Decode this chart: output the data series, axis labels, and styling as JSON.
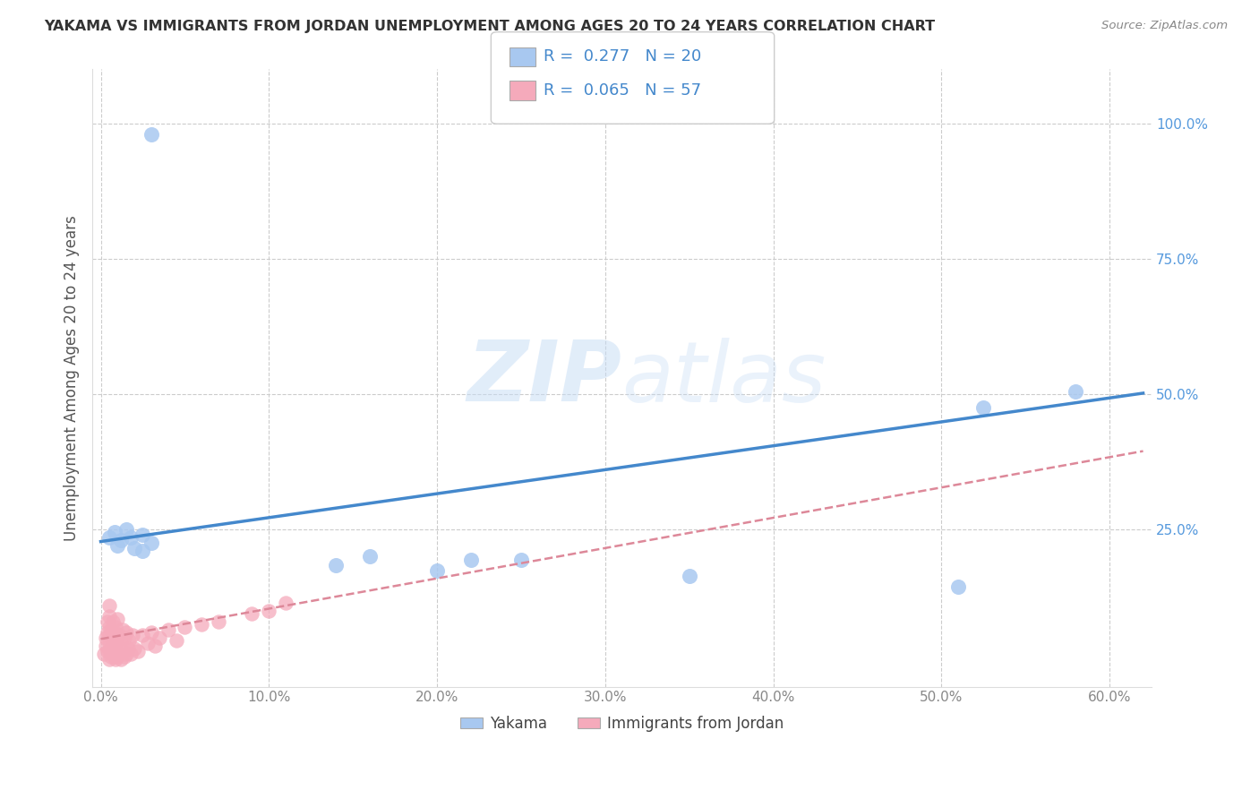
{
  "title": "YAKAMA VS IMMIGRANTS FROM JORDAN UNEMPLOYMENT AMONG AGES 20 TO 24 YEARS CORRELATION CHART",
  "source": "Source: ZipAtlas.com",
  "ylabel_label": "Unemployment Among Ages 20 to 24 years",
  "xlim": [
    -0.005,
    0.625
  ],
  "ylim": [
    -0.04,
    1.1
  ],
  "watermark_zip": "ZIP",
  "watermark_atlas": "atlas",
  "legend_label1": "Yakama",
  "legend_label2": "Immigrants from Jordan",
  "R1": 0.277,
  "N1": 20,
  "R2": 0.065,
  "N2": 57,
  "color_blue": "#A8C8F0",
  "color_pink": "#F5AABB",
  "line_color_blue": "#4488CC",
  "line_color_pink": "#DD8899",
  "trend_blue_x0": 0.0,
  "trend_blue_y0": 0.228,
  "trend_blue_x1": 0.62,
  "trend_blue_y1": 0.502,
  "trend_pink_x0": 0.0,
  "trend_pink_y0": 0.048,
  "trend_pink_x1": 0.62,
  "trend_pink_y1": 0.395,
  "yakama_x": [
    0.005,
    0.008,
    0.01,
    0.012,
    0.015,
    0.018,
    0.02,
    0.025,
    0.025,
    0.03,
    0.14,
    0.16,
    0.2,
    0.22,
    0.25,
    0.35,
    0.51,
    0.525,
    0.58,
    0.03
  ],
  "yakama_y": [
    0.235,
    0.245,
    0.22,
    0.23,
    0.25,
    0.235,
    0.215,
    0.24,
    0.21,
    0.225,
    0.185,
    0.2,
    0.175,
    0.195,
    0.195,
    0.165,
    0.145,
    0.475,
    0.505,
    0.98
  ],
  "jordan_x": [
    0.002,
    0.003,
    0.003,
    0.004,
    0.004,
    0.004,
    0.005,
    0.005,
    0.005,
    0.005,
    0.005,
    0.005,
    0.005,
    0.006,
    0.006,
    0.006,
    0.007,
    0.007,
    0.007,
    0.008,
    0.008,
    0.008,
    0.009,
    0.009,
    0.009,
    0.01,
    0.01,
    0.01,
    0.011,
    0.011,
    0.012,
    0.012,
    0.013,
    0.013,
    0.014,
    0.014,
    0.015,
    0.015,
    0.016,
    0.017,
    0.018,
    0.019,
    0.02,
    0.022,
    0.025,
    0.028,
    0.03,
    0.032,
    0.035,
    0.04,
    0.045,
    0.05,
    0.06,
    0.07,
    0.09,
    0.1,
    0.11
  ],
  "jordan_y": [
    0.02,
    0.035,
    0.05,
    0.025,
    0.06,
    0.08,
    0.01,
    0.025,
    0.04,
    0.055,
    0.07,
    0.09,
    0.11,
    0.015,
    0.03,
    0.065,
    0.02,
    0.045,
    0.08,
    0.015,
    0.035,
    0.06,
    0.01,
    0.04,
    0.07,
    0.015,
    0.05,
    0.085,
    0.02,
    0.055,
    0.01,
    0.04,
    0.025,
    0.065,
    0.015,
    0.05,
    0.02,
    0.06,
    0.03,
    0.045,
    0.02,
    0.055,
    0.03,
    0.025,
    0.055,
    0.04,
    0.06,
    0.035,
    0.05,
    0.065,
    0.045,
    0.07,
    0.075,
    0.08,
    0.095,
    0.1,
    0.115
  ],
  "background_color": "#ffffff",
  "grid_color": "#cccccc",
  "ytick_color": "#5599DD",
  "xtick_color": "#888888"
}
